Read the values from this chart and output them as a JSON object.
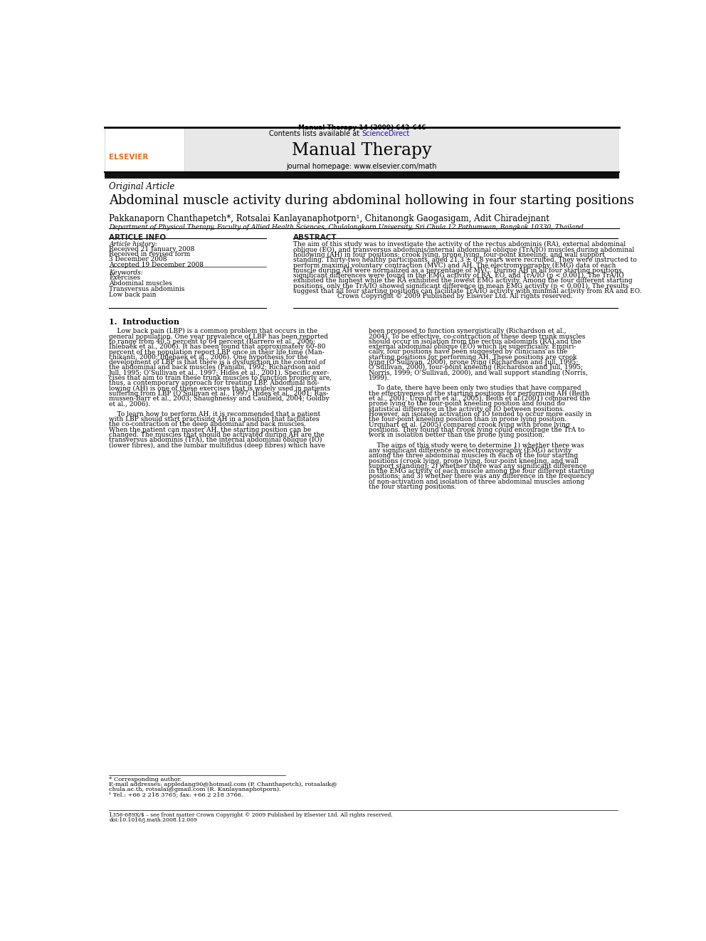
{
  "page_width": 9.92,
  "page_height": 13.23,
  "dpi": 100,
  "bg_color": "#ffffff",
  "header_journal_line": "Manual Therapy 14 (2009) 642–646",
  "header_bg": "#e8e8e8",
  "header_contents": "Contents lists available at ScienceDirect",
  "header_journal_name": "Manual Therapy",
  "header_homepage": "journal homepage: www.elsevier.com/math",
  "section_label": "Original Article",
  "article_title": "Abdominal muscle activity during abdominal hollowing in four starting positions",
  "authors": "Pakkanaporn Chanthapetch*, Rotsalai Kanlayanaphotporn¹, Chitanongk Gaogasigam, Adit Chiradejnant",
  "affiliation": "Department of Physical Therapy, Faculty of Allied Health Sciences, Chulalongkorn University, Sri Chula 12 Pathumwan, Bangkok 10330, Thailand",
  "article_info_header": "ARTICLE INFO",
  "article_history_label": "Article history:",
  "received": "Received 21 January 2008",
  "received_revised": "Received in revised form",
  "received_revised_date": "3 December 2008",
  "accepted": "Accepted 19 December 2008",
  "keywords_label": "Keywords:",
  "keywords": [
    "Exercises",
    "Abdominal muscles",
    "Transversus abdominis",
    "Low back pain"
  ],
  "abstract_header": "ABSTRACT",
  "abs_lines": [
    "The aim of this study was to investigate the activity of the rectus abdominis (RA), external abdominal",
    "oblique (EO), and transversus abdominis/internal abdominal oblique (TrA/IO) muscles during abdominal",
    "hollowing (AH) in four positions; crook lying, prone lying, four-point kneeling, and wall support",
    "standing. Thirty-two healthy participants, aged 21.3 ± 0.8 years were recruited. They were instructed to",
    "perform maximal voluntary contraction (MVC) and AH. The electromyography (EMG) data of each",
    "muscle during AH were normalized as a percentage of MVC. During AH in all four starting positions,",
    "significant differences were found in the EMG activity of RA, EO, and TrA/IO (p < 0.001). The TrA/IO",
    "exhibited the highest while the RA exhibited the lowest EMG activity. Among the four different starting",
    "positions, only the TrA/IO showed significant difference in mean EMG activity (p < 0.001). The results",
    "suggest that all four starting positions can facilitate TrA/IO activity with minimal activity from RA and EO.",
    "Crown Copyright © 2009 Published by Elsevier Ltd. All rights reserved."
  ],
  "intro_header": "1.  Introduction",
  "intro_col1_lines": [
    "    Low back pain (LBP) is a common problem that occurs in the",
    "general population. One year prevalence of LBP has been reported",
    "to range from 40.5 percent to 64 percent (Barrero et al., 2006;",
    "Ihlebaek et al., 2006). It has been found that approximately 60–80",
    "percent of the population report LBP once in their life time (Man-",
    "chikanti, 2000; Ihlebaek et al., 2006). One hypothesis for the",
    "development of LBP is that there is a dysfunction in the control of",
    "the abdominal and back muscles (Panjabi, 1992; Richardson and",
    "Jull, 1995; O’Sullivan et al., 1997; Hides et al., 2001). Specific exer-",
    "cises that aim to train these trunk muscles to function properly are,",
    "thus, a contemporary approach for treating LBP. Abdominal hol-",
    "lowing (AH) is one of these exercises that is widely used in patients",
    "suffering from LBP (O’Sullivan et al., 1997; Hides et al., 2001; Ras-",
    "mussen-Barr et al., 2003; Shaughnessy and Caulfield, 2004; Goldby",
    "et al., 2006).",
    "",
    "    To learn how to perform AH, it is recommended that a patient",
    "with LBP should start practising AH in a position that facilitates",
    "the co-contraction of the deep abdominal and back muscles.",
    "When the patient can master AH, the starting position can be",
    "changed. The muscles that should be activated during AH are the",
    "transversus abdominis (TrA), the internal abdominal oblique (IO)",
    "(lower fibres), and the lumbar multifidus (deep fibres) which have"
  ],
  "intro_col2_lines": [
    "been proposed to function synergistically (Richardson et al.,",
    "2004). To be effective, co-contraction of these deep trunk muscles",
    "should occur in isolation from the rectus abdominis (RA) and the",
    "external abdominal oblique (EO) which lie superficially. Empiri-",
    "cally, four positions have been suggested by clinicians as the",
    "starting positions for performing AH. These positions are crook",
    "lying (O’Sullivan, 2000), prone lying (Richardson and Jull, 1995;",
    "O’Sullivan, 2000), four-point kneeling (Richardson and Jull, 1995;",
    "Norris, 1999; O’Sullivan, 2000), and wall support standing (Norris,",
    "1999).",
    "",
    "    To date, there have been only two studies that have compared",
    "the effectiveness of the starting positions for performing AH (Beith",
    "et al., 2001; Urquhart et al., 2005). Beith et al.(2001) compared the",
    "prone lying to the four-point kneeling position and found no",
    "statistical difference in the activity of IO between positions.",
    "However, an isolated activation of IO tended to occur more easily in",
    "the four-point kneeling position than in prone lying position.",
    "Urquhart et al. (2005) compared crook lying with prone lying",
    "positions. They found that crook lying could encourage the TrA to",
    "work in isolation better than the prone lying position.",
    "",
    "    The aims of this study were to determine 1) whether there was",
    "any significant difference in electromyography (EMG) activity",
    "among the three abdominal muscles in each of the four starting",
    "positions (crook lying, prone lying, four-point kneeling, and wall",
    "support standing); 2) whether there was any significant difference",
    "in the EMG activity of each muscle among the four different starting",
    "positions; and 3) whether there was any difference in the frequency",
    "of non-activation and isolation of three abdominal muscles among",
    "the four starting positions."
  ],
  "footnote1": "* Corresponding author.",
  "footnote2a": "E-mail addresses: appledang90@hotmail.com (P. Chanthapetch), rotsalaik@",
  "footnote2b": "chula.ac.th, rotsalai@gmail.com (R. Kanlayanaphotporn).",
  "footnote3": "¹ Tel.: +66 2 218 3765; fax: +66 2 218 3766.",
  "footer1": "1356-689X/$ – see front matter Crown Copyright © 2009 Published by Elsevier Ltd. All rights reserved.",
  "footer2": "doi:10.1016/j.math.2008.12.009"
}
